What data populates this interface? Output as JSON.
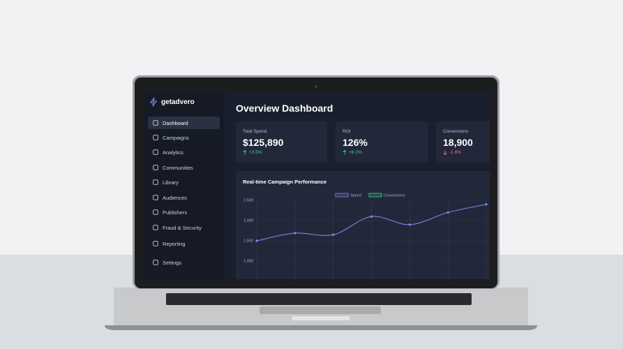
{
  "brand": "getadvero",
  "nav": [
    "Dashboard",
    "Campaigns",
    "Analytics",
    "Communities",
    "Library",
    "Audiences",
    "Publishers",
    "Fraud & Security",
    "Reporting",
    "Settings"
  ],
  "page_title": "Overview Dashboard",
  "cards": [
    {
      "label": "Total Spend",
      "value": "$125,890",
      "change": "+3.5%"
    },
    {
      "label": "ROI",
      "value": "126%",
      "change": "+8.2%"
    },
    {
      "label": "Conversions",
      "value": "18,900",
      "change": "-1.8%"
    }
  ],
  "chart_data": {
    "type": "line",
    "title": "Real-time Campaign Performance",
    "categories": [
      null,
      null,
      null,
      null,
      null,
      null,
      null
    ],
    "series": [
      {
        "name": "Spend",
        "color": "#7c86e6",
        "values": [
          1500,
          1690,
          1650,
          2100,
          1900,
          2200,
          2400
        ]
      },
      {
        "name": "Conversions",
        "color": "#34d399",
        "values": [
          null,
          null,
          null,
          null,
          null,
          null,
          null
        ]
      }
    ],
    "ylim": [
      500,
      2500
    ],
    "yticks": [
      {
        "value": 1000,
        "label": "1,000"
      },
      {
        "value": 1500,
        "label": "1,500"
      },
      {
        "value": 2000,
        "label": "2,000"
      },
      {
        "value": 2500,
        "label": "2,500"
      }
    ],
    "grid": true
  }
}
